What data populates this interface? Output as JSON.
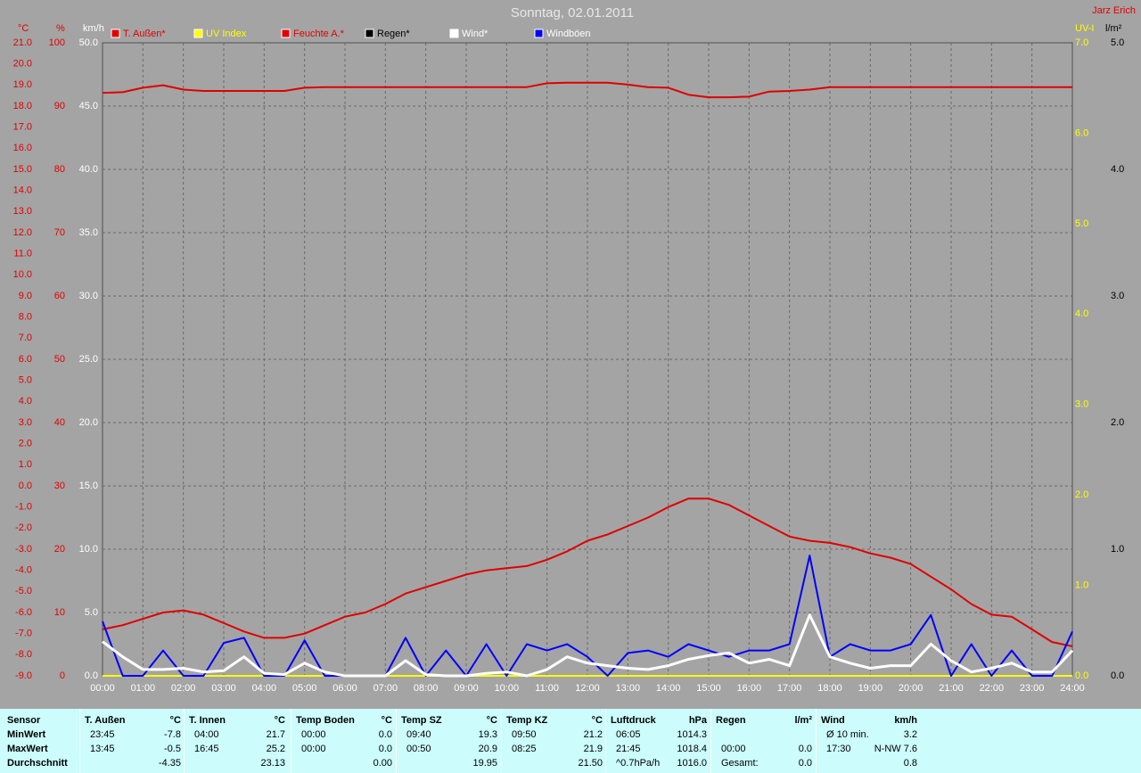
{
  "chart_data": {
    "type": "line",
    "title": "Sonntag, 02.01.2011",
    "author": "Jarz Erich",
    "grid": true,
    "x": [
      0,
      0.5,
      1,
      1.5,
      2,
      2.5,
      3,
      3.5,
      4,
      4.5,
      5,
      5.5,
      6,
      6.5,
      7,
      7.5,
      8,
      8.5,
      9,
      9.5,
      10,
      10.5,
      11,
      11.5,
      12,
      12.5,
      13,
      13.5,
      14,
      14.5,
      15,
      15.5,
      16,
      16.5,
      17,
      17.5,
      18,
      18.5,
      19,
      19.5,
      20,
      20.5,
      21,
      21.5,
      22,
      22.5,
      23,
      23.5,
      24
    ],
    "xlim": [
      0,
      24
    ],
    "xticks": [
      {
        "value": 0,
        "label": "00:00"
      },
      {
        "value": 1,
        "label": "01:00"
      },
      {
        "value": 2,
        "label": "02:00"
      },
      {
        "value": 3,
        "label": "03:00"
      },
      {
        "value": 4,
        "label": "04:00"
      },
      {
        "value": 5,
        "label": "05:00"
      },
      {
        "value": 6,
        "label": "06:00"
      },
      {
        "value": 7,
        "label": "07:00"
      },
      {
        "value": 8,
        "label": "08:00"
      },
      {
        "value": 9,
        "label": "09:00"
      },
      {
        "value": 10,
        "label": "10:00"
      },
      {
        "value": 11,
        "label": "11:00"
      },
      {
        "value": 12,
        "label": "12:00"
      },
      {
        "value": 13,
        "label": "13:00"
      },
      {
        "value": 14,
        "label": "14:00"
      },
      {
        "value": 15,
        "label": "15:00"
      },
      {
        "value": 16,
        "label": "16:00"
      },
      {
        "value": 17,
        "label": "17:00"
      },
      {
        "value": 18,
        "label": "18:00"
      },
      {
        "value": 19,
        "label": "19:00"
      },
      {
        "value": 20,
        "label": "20:00"
      },
      {
        "value": 21,
        "label": "21:00"
      },
      {
        "value": 22,
        "label": "22:00"
      },
      {
        "value": 23,
        "label": "23:00"
      },
      {
        "value": 24,
        "label": "24:00"
      }
    ],
    "axes": [
      {
        "unit": "°C",
        "color": "#e00000",
        "side": "left",
        "lim": [
          -9,
          21
        ],
        "ticks": [
          {
            "value": -9,
            "label": "-9.0"
          },
          {
            "value": -8,
            "label": "-8.0"
          },
          {
            "value": -7,
            "label": "-7.0"
          },
          {
            "value": -6,
            "label": "-6.0"
          },
          {
            "value": -5,
            "label": "-5.0"
          },
          {
            "value": -4,
            "label": "-4.0"
          },
          {
            "value": -3,
            "label": "-3.0"
          },
          {
            "value": -2,
            "label": "-2.0"
          },
          {
            "value": -1,
            "label": "-1.0"
          },
          {
            "value": 0,
            "label": "0.0"
          },
          {
            "value": 1,
            "label": "1.0"
          },
          {
            "value": 2,
            "label": "2.0"
          },
          {
            "value": 3,
            "label": "3.0"
          },
          {
            "value": 4,
            "label": "4.0"
          },
          {
            "value": 5,
            "label": "5.0"
          },
          {
            "value": 6,
            "label": "6.0"
          },
          {
            "value": 7,
            "label": "7.0"
          },
          {
            "value": 8,
            "label": "8.0"
          },
          {
            "value": 9,
            "label": "9.0"
          },
          {
            "value": 10,
            "label": "10.0"
          },
          {
            "value": 11,
            "label": "11.0"
          },
          {
            "value": 12,
            "label": "12.0"
          },
          {
            "value": 13,
            "label": "13.0"
          },
          {
            "value": 14,
            "label": "14.0"
          },
          {
            "value": 15,
            "label": "15.0"
          },
          {
            "value": 16,
            "label": "16.0"
          },
          {
            "value": 17,
            "label": "17.0"
          },
          {
            "value": 18,
            "label": "18.0"
          },
          {
            "value": 19,
            "label": "19.0"
          },
          {
            "value": 20,
            "label": "20.0"
          },
          {
            "value": 21,
            "label": "21.0"
          }
        ]
      },
      {
        "unit": "%",
        "color": "#e00000",
        "side": "left",
        "lim": [
          0,
          100
        ],
        "ticks": [
          0,
          10,
          20,
          30,
          40,
          50,
          60,
          70,
          80,
          90,
          100
        ]
      },
      {
        "unit": "km/h",
        "color": "#ffffff",
        "side": "left",
        "lim": [
          0,
          50
        ],
        "grid": true,
        "ticks": [
          {
            "value": 0,
            "label": "0.0"
          },
          {
            "value": 5,
            "label": "5.0"
          },
          {
            "value": 10,
            "label": "10.0"
          },
          {
            "value": 15,
            "label": "15.0"
          },
          {
            "value": 20,
            "label": "20.0"
          },
          {
            "value": 25,
            "label": "25.0"
          },
          {
            "value": 30,
            "label": "30.0"
          },
          {
            "value": 35,
            "label": "35.0"
          },
          {
            "value": 40,
            "label": "40.0"
          },
          {
            "value": 45,
            "label": "45.0"
          },
          {
            "value": 50,
            "label": "50.0"
          }
        ]
      },
      {
        "unit": "UV-I",
        "color": "#ffff00",
        "side": "right",
        "lim": [
          0,
          7
        ],
        "ticks": [
          {
            "value": 0,
            "label": "0.0"
          },
          {
            "value": 1,
            "label": "1.0"
          },
          {
            "value": 2,
            "label": "2.0"
          },
          {
            "value": 3,
            "label": "3.0"
          },
          {
            "value": 4,
            "label": "4.0"
          },
          {
            "value": 5,
            "label": "5.0"
          },
          {
            "value": 6,
            "label": "6.0"
          },
          {
            "value": 7,
            "label": "7.0"
          }
        ]
      },
      {
        "unit": "l/m²",
        "color": "#000000",
        "side": "right",
        "lim": [
          0,
          5
        ],
        "ticks": [
          {
            "value": 0,
            "label": "0.0"
          },
          {
            "value": 1,
            "label": "1.0"
          },
          {
            "value": 2,
            "label": "2.0"
          },
          {
            "value": 3,
            "label": "3.0"
          },
          {
            "value": 4,
            "label": "4.0"
          },
          {
            "value": 5,
            "label": "5.0"
          }
        ]
      }
    ],
    "series": [
      {
        "name": "T. Außen*",
        "color": "#e00000",
        "axis": 0,
        "values": [
          -6.8,
          -6.6,
          -6.3,
          -6.0,
          -5.9,
          -6.1,
          -6.5,
          -6.9,
          -7.2,
          -7.2,
          -7.0,
          -6.6,
          -6.2,
          -6.0,
          -5.6,
          -5.1,
          -4.8,
          -4.5,
          -4.2,
          -4.0,
          -3.9,
          -3.8,
          -3.5,
          -3.1,
          -2.6,
          -2.3,
          -1.9,
          -1.5,
          -1.0,
          -0.6,
          -0.6,
          -0.9,
          -1.4,
          -1.9,
          -2.4,
          -2.6,
          -2.7,
          -2.9,
          -3.2,
          -3.4,
          -3.7,
          -4.3,
          -4.9,
          -5.6,
          -6.1,
          -6.2,
          -6.8,
          -7.4,
          -7.6
        ]
      },
      {
        "name": "UV Index",
        "color": "#ffff00",
        "axis": 3,
        "values": [
          0,
          0,
          0,
          0,
          0,
          0,
          0,
          0,
          0,
          0,
          0,
          0,
          0,
          0,
          0,
          0,
          0,
          0,
          0,
          0,
          0,
          0,
          0,
          0,
          0,
          0,
          0,
          0,
          0,
          0,
          0,
          0,
          0,
          0,
          0,
          0,
          0,
          0,
          0,
          0,
          0,
          0,
          0,
          0,
          0,
          0,
          0,
          0,
          0
        ]
      },
      {
        "name": "Feuchte A.*",
        "color": "#e00000",
        "axis": 1,
        "values": [
          92.1,
          92.2,
          92.9,
          93.3,
          92.6,
          92.4,
          92.4,
          92.4,
          92.4,
          92.4,
          92.9,
          93.0,
          93.0,
          93.0,
          93.0,
          93.0,
          93.0,
          93.0,
          93.0,
          93.0,
          93.0,
          93.0,
          93.6,
          93.7,
          93.7,
          93.7,
          93.4,
          93.0,
          92.9,
          91.8,
          91.4,
          91.4,
          91.5,
          92.3,
          92.4,
          92.6,
          93.0,
          93.0,
          93.0,
          93.0,
          93.0,
          93.0,
          93.0,
          93.0,
          93.0,
          93.0,
          93.0,
          93.0,
          93.0
        ]
      },
      {
        "name": "Regen*",
        "color": "#000000",
        "axis": 4,
        "values": [
          0,
          0,
          0,
          0,
          0,
          0,
          0,
          0,
          0,
          0,
          0,
          0,
          0,
          0,
          0,
          0,
          0,
          0,
          0,
          0,
          0,
          0,
          0,
          0,
          0,
          0,
          0,
          0,
          0,
          0,
          0,
          0,
          0,
          0,
          0,
          0,
          0,
          0,
          0,
          0,
          0,
          0,
          0,
          0,
          0,
          0,
          0,
          0,
          0
        ]
      },
      {
        "name": "Wind*",
        "color": "#ffffff",
        "axis": 2,
        "values": [
          2.7,
          1.5,
          0.5,
          0.5,
          0.6,
          0.3,
          0.4,
          1.5,
          0.2,
          0.1,
          1.0,
          0.3,
          0,
          0,
          0,
          1.2,
          0.1,
          0,
          0,
          0.2,
          0.3,
          0,
          0.5,
          1.5,
          1.0,
          0.8,
          0.6,
          0.5,
          0.8,
          1.3,
          1.6,
          1.8,
          1.0,
          1.3,
          0.8,
          4.8,
          1.5,
          1.0,
          0.6,
          0.8,
          0.8,
          2.5,
          1.2,
          0.3,
          0.6,
          1.0,
          0.3,
          0.3,
          2.0
        ]
      },
      {
        "name": "Windböen",
        "color": "#0000ff",
        "axis": 2,
        "values": [
          4.3,
          0,
          0,
          2.0,
          0,
          0,
          2.6,
          3.0,
          0,
          0,
          2.8,
          0,
          0,
          0,
          0,
          3.0,
          0,
          2.0,
          0,
          2.5,
          0,
          2.5,
          2.0,
          2.5,
          1.5,
          0,
          1.8,
          2.0,
          1.5,
          2.5,
          2.0,
          1.5,
          2.0,
          2.0,
          2.5,
          9.5,
          1.5,
          2.5,
          2.0,
          2.0,
          2.5,
          4.8,
          0,
          2.5,
          0,
          2.0,
          0,
          0,
          3.5
        ]
      }
    ]
  },
  "stats": {
    "row_labels": [
      "Sensor",
      "MinWert",
      "MaxWert",
      "Durchschnitt"
    ],
    "columns": [
      {
        "title": "T. Außen",
        "unit": "°C",
        "rows": [
          [
            "23:45",
            "-7.8"
          ],
          [
            "13:45",
            "-0.5"
          ],
          [
            "-4.35"
          ]
        ]
      },
      {
        "title": "T. Innen",
        "unit": "°C",
        "rows": [
          [
            "04:00",
            "21.7"
          ],
          [
            "16:45",
            "25.2"
          ],
          [
            "23.13"
          ]
        ]
      },
      {
        "title": "Temp Boden",
        "unit": "°C",
        "rows": [
          [
            "00:00",
            "0.0"
          ],
          [
            "00:00",
            "0.0"
          ],
          [
            "0.00"
          ]
        ]
      },
      {
        "title": "Temp SZ",
        "unit": "°C",
        "rows": [
          [
            "09:40",
            "19.3"
          ],
          [
            "00:50",
            "20.9"
          ],
          [
            "19.95"
          ]
        ]
      },
      {
        "title": "Temp KZ",
        "unit": "°C",
        "rows": [
          [
            "09:50",
            "21.2"
          ],
          [
            "08:25",
            "21.9"
          ],
          [
            "21.50"
          ]
        ]
      },
      {
        "title": "Luftdruck",
        "unit": "hPa",
        "rows": [
          [
            "06:05",
            "1014.3"
          ],
          [
            "21:45",
            "1018.4"
          ],
          [
            "^0.7hPa/h",
            "1016.0"
          ]
        ]
      },
      {
        "title": "Regen",
        "unit": "l/m²",
        "rows": [
          [],
          [
            "00:00",
            "0.0"
          ],
          [
            "Gesamt:",
            "0.0"
          ]
        ]
      },
      {
        "title": "Wind",
        "unit": "km/h",
        "rows": [
          [
            "Ø 10 min.",
            "3.2"
          ],
          [
            "17:30",
            "N-NW 7.6"
          ],
          [
            "0.8"
          ]
        ]
      }
    ]
  }
}
